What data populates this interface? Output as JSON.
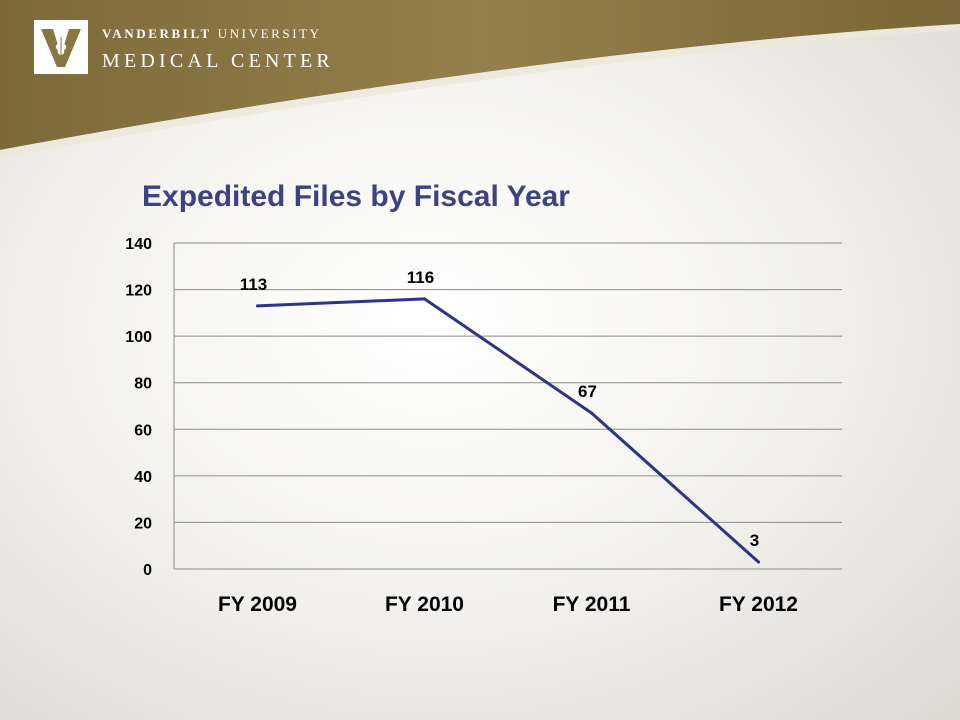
{
  "header": {
    "org_line1_bold": "VANDERBILT",
    "org_line1_rest": " UNIVERSITY",
    "org_line2": "MEDICAL CENTER",
    "colors": {
      "banner": "#8a7642",
      "banner_dark": "#6f5d31",
      "title": "#3b4383",
      "series": "#2e3587"
    }
  },
  "chart_data": {
    "type": "line",
    "title": "Expedited Files by Fiscal Year",
    "categories": [
      "FY 2009",
      "FY 2010",
      "FY 2011",
      "FY 2012"
    ],
    "series": [
      {
        "values": [
          113,
          116,
          67,
          3
        ]
      }
    ],
    "data_labels": [
      "113",
      "116",
      "67",
      "3"
    ],
    "y_ticks": [
      0,
      20,
      40,
      60,
      80,
      100,
      120,
      140
    ],
    "ylim": [
      0,
      140
    ],
    "xlabel": "",
    "ylabel": "",
    "grid": true,
    "legend": "none"
  }
}
